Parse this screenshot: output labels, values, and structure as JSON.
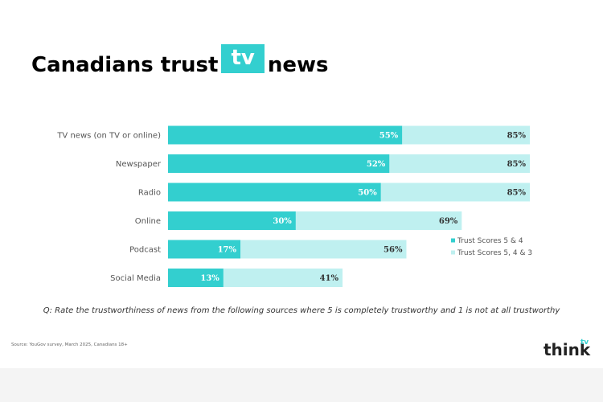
{
  "title": {
    "before": "Canadians trust",
    "highlight": "tv",
    "after": "news"
  },
  "chart_data": {
    "type": "bar",
    "orientation": "horizontal",
    "categories": [
      "TV news (on TV or online)",
      "Newspaper",
      "Radio",
      "Online",
      "Podcast",
      "Social Media"
    ],
    "series": [
      {
        "name": "Trust Scores 5 & 4",
        "values": [
          55,
          52,
          50,
          30,
          17,
          13
        ],
        "color": "#33cfcf"
      },
      {
        "name": "Trust Scores 5, 4 & 3",
        "values": [
          85,
          85,
          85,
          69,
          56,
          41
        ],
        "color": "#bff0f0"
      }
    ],
    "value_labels_1": [
      "55%",
      "52%",
      "50%",
      "30%",
      "17%",
      "13%"
    ],
    "value_labels_2": [
      "85%",
      "85%",
      "85%",
      "69%",
      "56%",
      "41%"
    ],
    "xlim": [
      0,
      85
    ],
    "grid": false,
    "legend_position": "right"
  },
  "question": "Q: Rate the trustworthiness of news from the following sources where 5 is completely trustworthy and 1 is not at all trustworthy",
  "source": "Source: YouGov survey, March 2025, Canadians 18+",
  "logo": {
    "word": "think",
    "tv": "tv"
  }
}
